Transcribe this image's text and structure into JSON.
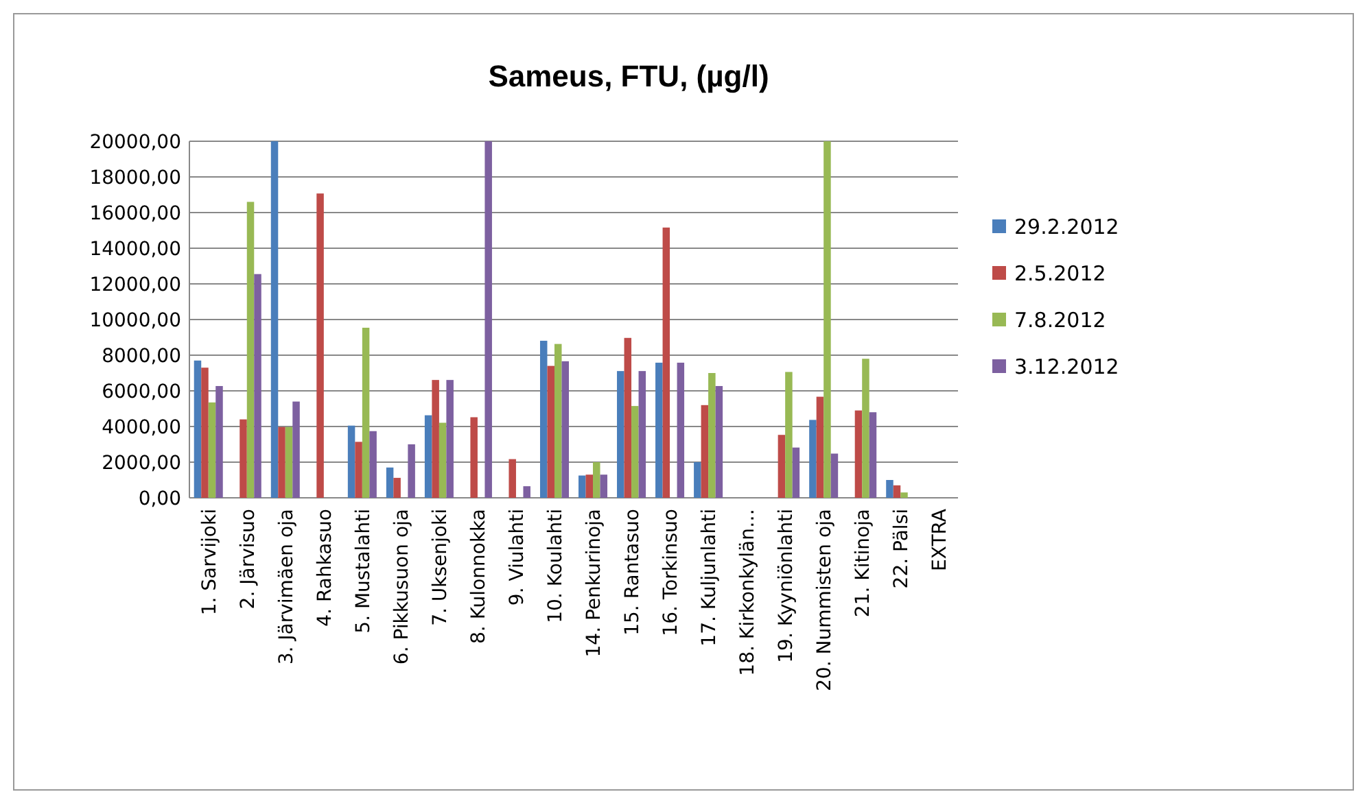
{
  "chart_data": {
    "type": "bar",
    "title": "Sameus, FTU, (µg/l)",
    "categories": [
      "1. Sarvijoki",
      "2. Järvisuo",
      "3. Järvimäen oja",
      "4. Rahkasuo",
      "5. Mustalahti",
      "6. Pikkusuon oja",
      "7. Uksenjoki",
      "8. Kulonnokka",
      "9. Viulahti",
      "10. Koulahti",
      "14. Penkurinoja",
      "15. Rantasuo",
      "16. Torkinsuo",
      "17. Kuljunlahti",
      "18. Kirkonkylän…",
      "19. Kyyniönlahti",
      "20. Nummisten oja",
      "21. Kitinoja",
      "22. Pälsi",
      "EXTRA"
    ],
    "series": [
      {
        "name": "29.2.2012",
        "color": "#4a7ebb",
        "values": [
          7700,
          null,
          20000,
          null,
          4050,
          1700,
          4630,
          null,
          null,
          8810,
          1250,
          7110,
          7580,
          2000,
          null,
          null,
          4370,
          null,
          1000,
          null
        ]
      },
      {
        "name": "2.5.2012",
        "color": "#be4b48",
        "values": [
          7300,
          4400,
          3970,
          17070,
          3140,
          1120,
          6610,
          4520,
          2170,
          7400,
          1300,
          8970,
          15160,
          5200,
          null,
          3530,
          5670,
          4900,
          700,
          null
        ]
      },
      {
        "name": "7.8.2012",
        "color": "#98b954",
        "values": [
          5350,
          16600,
          3970,
          null,
          9540,
          null,
          4210,
          null,
          null,
          8630,
          2000,
          5150,
          null,
          7000,
          null,
          7060,
          20000,
          7800,
          300,
          null
        ]
      },
      {
        "name": "3.12.2012",
        "color": "#7d60a0",
        "values": [
          6270,
          12550,
          5400,
          null,
          3740,
          3000,
          6610,
          20000,
          650,
          7660,
          1300,
          7110,
          7580,
          6270,
          null,
          2820,
          2480,
          4800,
          null,
          null
        ]
      }
    ],
    "ylim": [
      0,
      20000
    ],
    "yticks": [
      {
        "value": 0,
        "label": "0,00"
      },
      {
        "value": 2000,
        "label": "2000,00"
      },
      {
        "value": 4000,
        "label": "4000,00"
      },
      {
        "value": 6000,
        "label": "6000,00"
      },
      {
        "value": 8000,
        "label": "8000,00"
      },
      {
        "value": 10000,
        "label": "10000,00"
      },
      {
        "value": 12000,
        "label": "12000,00"
      },
      {
        "value": 14000,
        "label": "14000,00"
      },
      {
        "value": 16000,
        "label": "16000,00"
      },
      {
        "value": 18000,
        "label": "18000,00"
      },
      {
        "value": 20000,
        "label": "20000,00"
      }
    ],
    "grid": "y",
    "legend": "right"
  }
}
